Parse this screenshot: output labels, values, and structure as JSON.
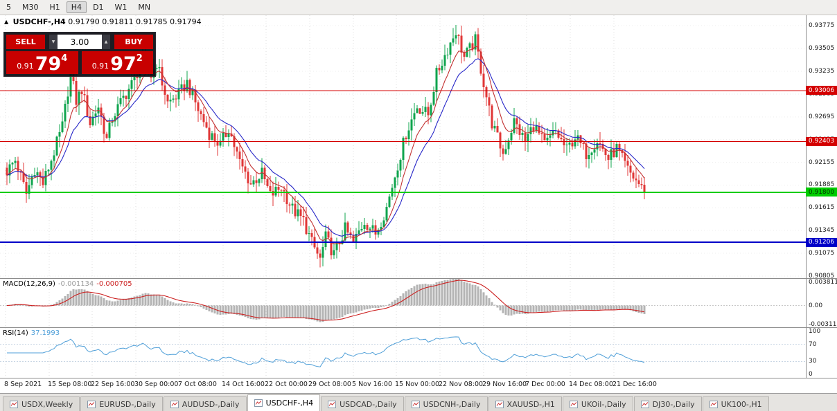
{
  "colors": {
    "up": "#0fa44e",
    "down": "#e03636",
    "ma_fast": "#c23232",
    "ma_slow": "#2828c8",
    "macd_hist": "#b4b4b4",
    "macd_signal": "#cc2020",
    "rsi_line": "#4f9fd8",
    "trade_red": "#c80000"
  },
  "toolbar": {
    "timeframes": [
      {
        "label": "5"
      },
      {
        "label": "M30"
      },
      {
        "label": "H1"
      },
      {
        "label": "H4",
        "active": true
      },
      {
        "label": "D1"
      },
      {
        "label": "W1"
      },
      {
        "label": "MN"
      }
    ]
  },
  "chart_header": {
    "collapse_icon": "▲",
    "symbol": "USDCHF-,H4",
    "ohlc": "0.91790 0.91811 0.91785 0.91794"
  },
  "trade_panel": {
    "sell_label": "SELL",
    "buy_label": "BUY",
    "volume": "3.00",
    "spinner_down": "▼",
    "spinner_up": "▲",
    "sell_price": {
      "prefix": "0.91",
      "big": "79",
      "sup": "4"
    },
    "buy_price": {
      "prefix": "0.91",
      "big": "97",
      "sup": "2"
    }
  },
  "price_scale": {
    "min": 0.9078,
    "max": 0.939,
    "ticks": [
      "0.93775",
      "0.93505",
      "0.93235",
      "0.92965",
      "0.92695",
      "0.92425",
      "0.92155",
      "0.91885",
      "0.91615",
      "0.91345",
      "0.91075",
      "0.90805"
    ]
  },
  "levels": [
    {
      "label": "0.93006",
      "price": 0.93006,
      "color": "#d40000",
      "text_color": "#ffffff",
      "width": 1
    },
    {
      "label": "0.92403",
      "price": 0.92403,
      "color": "#d40000",
      "text_color": "#ffffff",
      "width": 1
    },
    {
      "label": "0.91800",
      "price": 0.918,
      "color": "#00cc00",
      "text_color": "#003300",
      "width": 2
    },
    {
      "label": "0.91206",
      "price": 0.91206,
      "color": "#0000c8",
      "text_color": "#ffffff",
      "width": 2
    }
  ],
  "time_axis": {
    "labels": [
      "8 Sep 2021",
      "15 Sep 08:00",
      "22 Sep 16:00",
      "30 Sep 00:00",
      "7 Oct 08:00",
      "14 Oct 16:00",
      "22 Oct 00:00",
      "29 Oct 08:00",
      "5 Nov 16:00",
      "15 Nov 00:00",
      "22 Nov 08:00",
      "29 Nov 16:00",
      "7 Dec 00:00",
      "14 Dec 08:00",
      "21 Dec 16:00"
    ]
  },
  "macd_panel": {
    "label": "MACD(12,26,9)",
    "value_main": "-0.001134",
    "value_signal": "-0.000705",
    "scale": [
      {
        "label": "0.003811",
        "value": 0.003811
      },
      {
        "label": "0.00",
        "value": 0
      },
      {
        "label": "-0.003115",
        "value": -0.003115
      }
    ],
    "range": {
      "min": -0.0036,
      "max": 0.0044
    }
  },
  "rsi_panel": {
    "label": "RSI(14)",
    "value": "37.1993",
    "scale": [
      {
        "label": "100",
        "value": 100
      },
      {
        "label": "70",
        "value": 70
      },
      {
        "label": "30",
        "value": 30
      },
      {
        "label": "0",
        "value": 0
      }
    ],
    "levels": [
      70,
      30
    ],
    "range": {
      "min": -8,
      "max": 108
    }
  },
  "tabs": [
    {
      "label": "USDX,Weekly"
    },
    {
      "label": "EURUSD-,Daily"
    },
    {
      "label": "AUDUSD-,Daily"
    },
    {
      "label": "USDCHF-,H4",
      "active": true
    },
    {
      "label": "USDCAD-,Daily"
    },
    {
      "label": "USDCNH-,Daily"
    },
    {
      "label": "XAUUSD-,H1"
    },
    {
      "label": "UKOil-,Daily"
    },
    {
      "label": "DJ30-,Daily"
    },
    {
      "label": "UK100-,H1"
    }
  ],
  "chart_data": {
    "type": "candlestick",
    "symbol": "USDCHF-",
    "timeframe": "H4",
    "bars": 231,
    "last_close": 0.91794,
    "visible_high": 0.93775,
    "visible_low": 0.90805,
    "keyframes": [
      [
        0,
        0.9205
      ],
      [
        3,
        0.9218
      ],
      [
        7,
        0.9178
      ],
      [
        10,
        0.9208
      ],
      [
        13,
        0.919
      ],
      [
        17,
        0.9228
      ],
      [
        20,
        0.9258
      ],
      [
        23,
        0.9322
      ],
      [
        25,
        0.9288
      ],
      [
        27,
        0.9302
      ],
      [
        30,
        0.9262
      ],
      [
        33,
        0.9282
      ],
      [
        36,
        0.9242
      ],
      [
        38,
        0.9268
      ],
      [
        42,
        0.9292
      ],
      [
        45,
        0.9308
      ],
      [
        49,
        0.9336
      ],
      [
        52,
        0.9318
      ],
      [
        54,
        0.9334
      ],
      [
        58,
        0.9286
      ],
      [
        62,
        0.9296
      ],
      [
        65,
        0.931
      ],
      [
        69,
        0.9278
      ],
      [
        73,
        0.925
      ],
      [
        77,
        0.9236
      ],
      [
        80,
        0.9256
      ],
      [
        84,
        0.9215
      ],
      [
        88,
        0.919
      ],
      [
        92,
        0.9202
      ],
      [
        95,
        0.9176
      ],
      [
        99,
        0.9186
      ],
      [
        103,
        0.916
      ],
      [
        107,
        0.9146
      ],
      [
        110,
        0.912
      ],
      [
        113,
        0.91
      ],
      [
        115,
        0.9126
      ],
      [
        118,
        0.9106
      ],
      [
        122,
        0.9136
      ],
      [
        125,
        0.912
      ],
      [
        129,
        0.9146
      ],
      [
        133,
        0.9131
      ],
      [
        137,
        0.9162
      ],
      [
        140,
        0.92
      ],
      [
        144,
        0.925
      ],
      [
        148,
        0.9282
      ],
      [
        152,
        0.9272
      ],
      [
        155,
        0.932
      ],
      [
        159,
        0.935
      ],
      [
        162,
        0.9372
      ],
      [
        165,
        0.934
      ],
      [
        169,
        0.936
      ],
      [
        172,
        0.931
      ],
      [
        175,
        0.9262
      ],
      [
        179,
        0.9226
      ],
      [
        183,
        0.9264
      ],
      [
        187,
        0.924
      ],
      [
        190,
        0.926
      ],
      [
        194,
        0.9236
      ],
      [
        198,
        0.9252
      ],
      [
        202,
        0.923
      ],
      [
        205,
        0.9246
      ],
      [
        209,
        0.9226
      ],
      [
        213,
        0.9242
      ],
      [
        217,
        0.922
      ],
      [
        220,
        0.9232
      ],
      [
        224,
        0.9206
      ],
      [
        228,
        0.919
      ],
      [
        230,
        0.91794
      ]
    ],
    "noise_amp": 0.0008,
    "wick_amp": 0.0013,
    "ma_fast_period": 8,
    "ma_slow_period": 16,
    "macd": {
      "fast": 12,
      "slow": 26,
      "signal": 9
    },
    "rsi_period": 14
  }
}
